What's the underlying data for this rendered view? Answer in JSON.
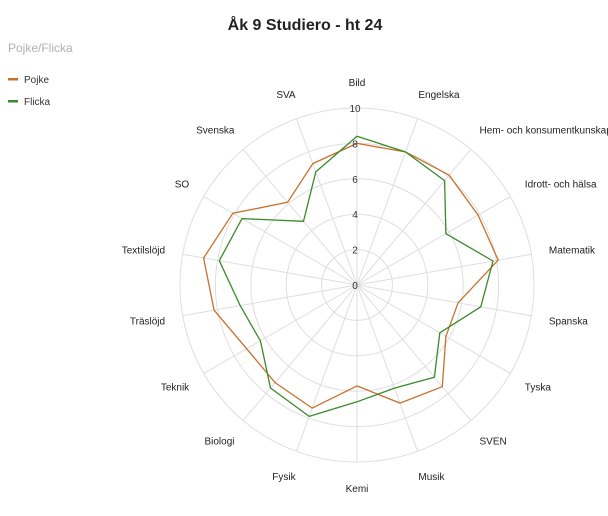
{
  "chart_data": {
    "type": "radar",
    "title": "Åk 9 Studiero - ht 24",
    "legend": {
      "title": "Pojke/Flicka",
      "placement": "top-left"
    },
    "categories": [
      "Bild",
      "Engelska",
      "Hem- och konsumentkunskap",
      "Idrott- och hälsa",
      "Matematik",
      "Spanska",
      "Tyska",
      "SVEN",
      "Musik",
      "Kemi",
      "Fysik",
      "Biologi",
      "Teknik",
      "Träslöjd",
      "Textilslöjd",
      "SO",
      "Svenska",
      "SVA"
    ],
    "series": [
      {
        "name": "Pojke",
        "color": "#c8702b",
        "values": [
          8.0,
          8.0,
          8.1,
          7.9,
          8.1,
          5.8,
          5.8,
          7.5,
          7.1,
          5.7,
          7.4,
          7.2,
          7.2,
          8.2,
          8.8,
          8.1,
          6.1,
          7.3
        ]
      },
      {
        "name": "Flicka",
        "color": "#3a8a2a",
        "values": [
          8.4,
          8.0,
          7.7,
          5.8,
          7.8,
          7.1,
          5.4,
          6.8,
          6.2,
          6.6,
          7.9,
          7.6,
          6.3,
          6.7,
          7.9,
          7.5,
          4.7,
          6.8
        ]
      }
    ],
    "rlim": [
      0,
      10
    ],
    "ticks": [
      "0",
      "2",
      "4",
      "6",
      "8",
      "10"
    ],
    "grid": true
  }
}
